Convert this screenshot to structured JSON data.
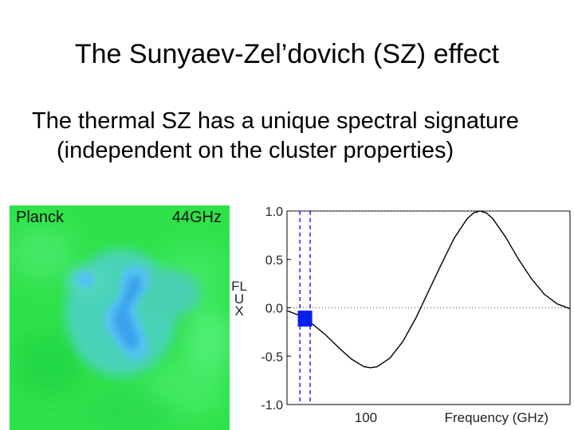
{
  "slide": {
    "title": "The Sunyaev-Zel’dovich (SZ) effect",
    "body": "The thermal SZ has a unique spectral signature (independent on the cluster properties)"
  },
  "map": {
    "instrument_label": "Planck",
    "frequency_label": "44GHz",
    "colors": {
      "background": "#33e84e",
      "cool": "#52c2f2",
      "core": "#2f8fe6"
    }
  },
  "chart_data": {
    "type": "line",
    "title": "",
    "xlabel": "Frequency (GHz)",
    "ylabel": "FLUX",
    "x_tick_labels": [
      "100"
    ],
    "y_tick_labels": [
      "1.0",
      "0.5",
      "0.0",
      "-0.5",
      "-1.0"
    ],
    "ylim": [
      -1.0,
      1.0
    ],
    "y_ticks": [
      1.0,
      0.5,
      0.0,
      -0.5,
      -1.0
    ],
    "grid": "dotted horizontal reference lines at 0.0 and 1.0",
    "series": [
      {
        "values_description": "thermal SZ spectral distortion",
        "points": [
          [
            30,
            -0.03
          ],
          [
            40,
            -0.08
          ],
          [
            44,
            -0.12
          ],
          [
            50,
            -0.17
          ],
          [
            60,
            -0.28
          ],
          [
            70,
            -0.41
          ],
          [
            80,
            -0.53
          ],
          [
            90,
            -0.61
          ],
          [
            95,
            -0.62
          ],
          [
            100,
            -0.61
          ],
          [
            110,
            -0.52
          ],
          [
            120,
            -0.35
          ],
          [
            130,
            -0.11
          ],
          [
            140,
            0.17
          ],
          [
            150,
            0.45
          ],
          [
            160,
            0.72
          ],
          [
            170,
            0.92
          ],
          [
            175,
            0.98
          ],
          [
            180,
            1.0
          ],
          [
            185,
            0.98
          ],
          [
            190,
            0.92
          ],
          [
            200,
            0.73
          ],
          [
            210,
            0.5
          ],
          [
            220,
            0.3
          ],
          [
            230,
            0.14
          ],
          [
            240,
            0.04
          ],
          [
            250,
            -0.01
          ]
        ]
      }
    ],
    "highlight_band": {
      "x_start": 40,
      "x_end": 48,
      "color": "#0000ff",
      "line_style": "dashed"
    },
    "marker": {
      "x": 44,
      "y": -0.12,
      "color": "#0a1ef0"
    }
  }
}
